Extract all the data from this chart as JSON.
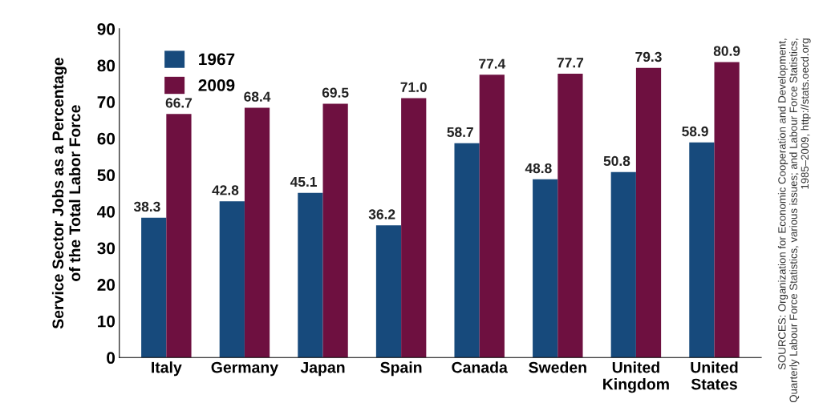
{
  "chart_data": {
    "type": "bar",
    "ylabel": "Service Sector Jobs as a Percentage\nof the Total Labor Force",
    "categories": [
      "Italy",
      "Germany",
      "Japan",
      "Spain",
      "Canada",
      "Sweden",
      "United\nKingdom",
      "United\nStates"
    ],
    "series": [
      {
        "name": "1967",
        "color": "#174a7c",
        "values": [
          38.3,
          42.8,
          45.1,
          36.2,
          58.7,
          48.8,
          50.8,
          58.9
        ],
        "value_labels": [
          "38.3",
          "42.8",
          "45.1",
          "36.2",
          "58.7",
          "48.8",
          "50.8",
          "58.9"
        ]
      },
      {
        "name": "2009",
        "color": "#6e1040",
        "values": [
          66.7,
          68.4,
          69.5,
          71.0,
          77.4,
          77.7,
          79.3,
          80.9
        ],
        "value_labels": [
          "66.7",
          "68.4",
          "69.5",
          "71.0",
          "77.4",
          "77.7",
          "79.3",
          "80.9"
        ]
      }
    ],
    "ylim": [
      0,
      90
    ],
    "yticks": [
      0,
      10,
      20,
      30,
      40,
      50,
      60,
      70,
      80,
      90
    ],
    "legend": "top left",
    "grid": false,
    "annotations": [
      "SOURCES: Organization for Economic Cooperation and Development,\nQuarterly Labour Force Statistics, various issues; and Labour Force Statistics,\n1985–2009, http://stats.oecd.org"
    ]
  }
}
